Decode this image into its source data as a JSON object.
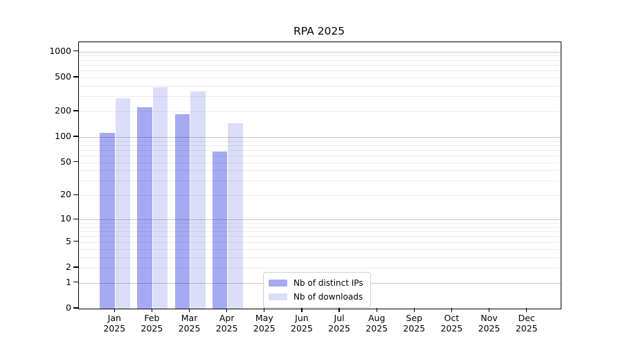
{
  "chart_data": {
    "type": "bar",
    "title": "RPA 2025",
    "x": {
      "categories": [
        "Jan",
        "Feb",
        "Mar",
        "Apr",
        "May",
        "Jun",
        "Jul",
        "Aug",
        "Sep",
        "Oct",
        "Nov",
        "Dec"
      ],
      "year_suffix": "2025"
    },
    "yaxis": {
      "scale": "symlog",
      "ticks": [
        1000,
        500,
        200,
        100,
        50,
        20,
        10,
        5,
        2,
        1,
        0
      ],
      "major_gridlines": [
        1,
        10,
        100,
        1000
      ],
      "range": [
        0,
        1000
      ],
      "grid": true
    },
    "series": [
      {
        "name": "Nb of distinct IPs",
        "color": "#a6aaf3",
        "values": [
          112,
          225,
          185,
          67,
          null,
          null,
          null,
          null,
          null,
          null,
          null,
          null
        ]
      },
      {
        "name": "Nb of downloads",
        "color": "#dbdef9",
        "values": [
          285,
          386,
          345,
          146,
          null,
          null,
          null,
          null,
          null,
          null,
          null,
          null
        ]
      }
    ],
    "legend": {
      "position": "bottom-center"
    }
  },
  "colors": {
    "axis": "#000000",
    "text": "#000000",
    "legend_border": "#cfcfcf"
  }
}
